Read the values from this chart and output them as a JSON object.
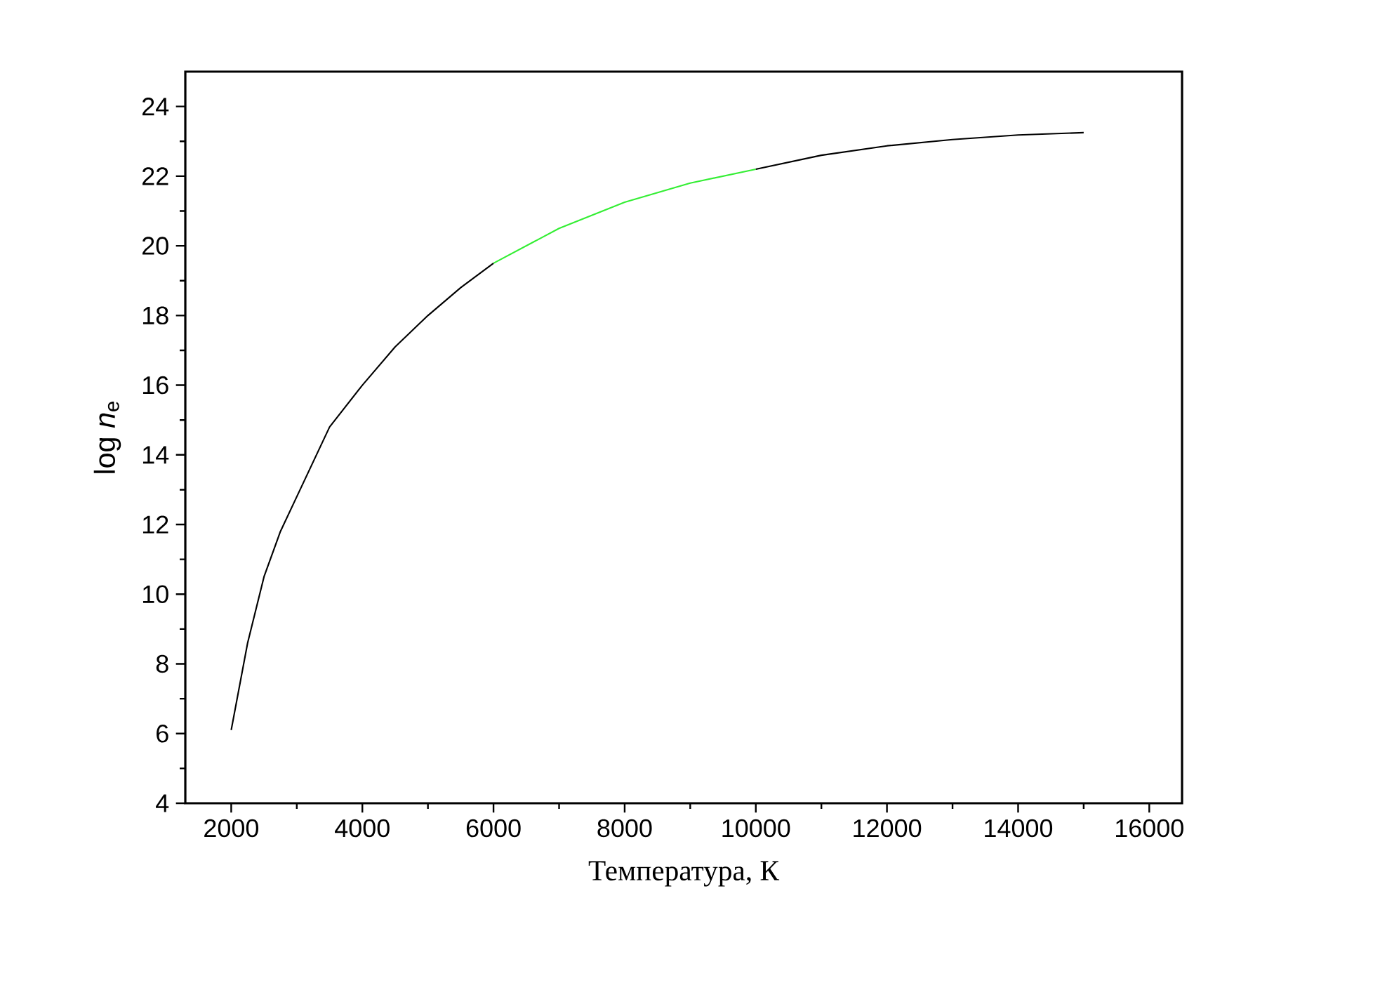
{
  "chart_data": {
    "type": "line",
    "xlabel": "Температура, К",
    "ylabel": "log *n*$_{e}$",
    "xlim": [
      1300,
      16500
    ],
    "ylim": [
      4,
      25
    ],
    "xticks": [
      2000,
      4000,
      6000,
      8000,
      10000,
      12000,
      14000,
      16000
    ],
    "yticks": [
      4,
      6,
      8,
      10,
      12,
      14,
      16,
      18,
      20,
      22,
      24
    ],
    "series": [
      {
        "color": "#000000",
        "x": [
          2000,
          2250,
          2500,
          2750,
          3000,
          3500,
          4000,
          4500,
          5000,
          5500,
          6000
        ],
        "values": [
          6.1,
          8.6,
          10.5,
          11.8,
          12.8,
          14.8,
          16.0,
          17.1,
          18.0,
          18.8,
          19.5
        ]
      },
      {
        "color": "#33ee33",
        "x": [
          6000,
          7000,
          8000,
          9000,
          10000
        ],
        "values": [
          19.5,
          20.5,
          21.25,
          21.8,
          22.2
        ]
      },
      {
        "color": "#000000",
        "x": [
          10000,
          11000,
          12000,
          13000,
          14000,
          15000
        ],
        "values": [
          22.2,
          22.6,
          22.87,
          23.05,
          23.18,
          23.25
        ]
      }
    ]
  }
}
